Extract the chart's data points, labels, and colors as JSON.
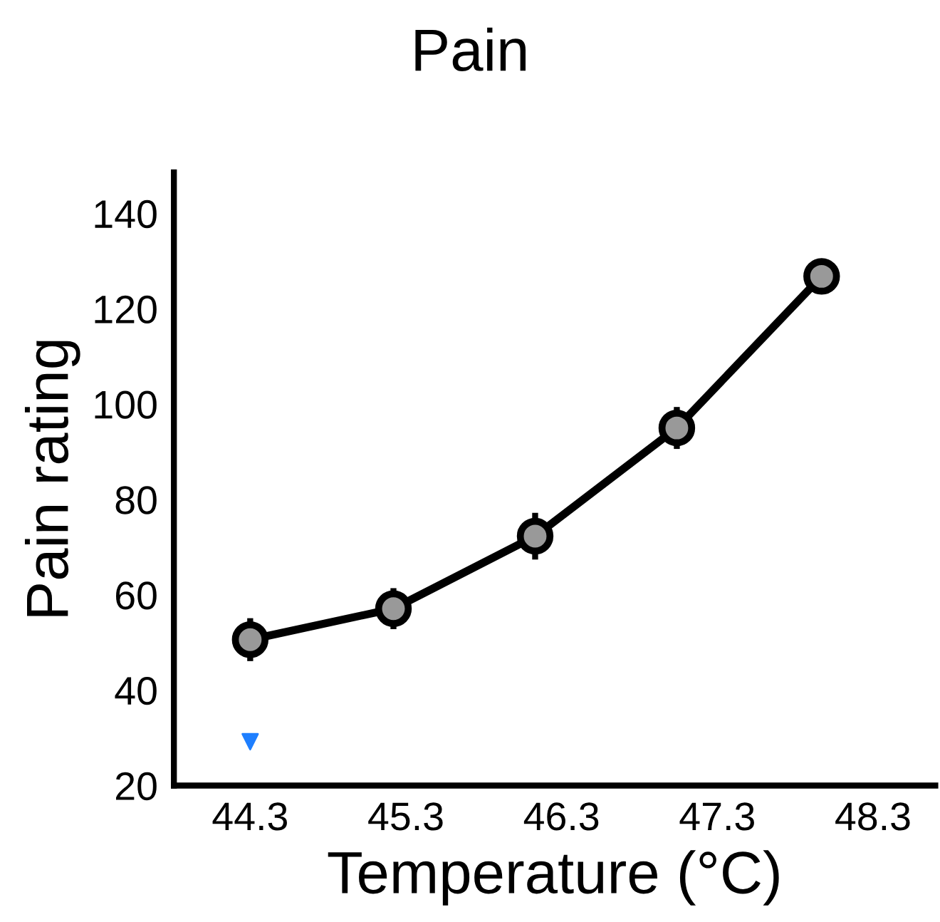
{
  "chart_data": {
    "type": "line",
    "title": "Pain",
    "xlabel": "Temperature (°C)",
    "ylabel": "Pain rating",
    "xlim": [
      43.81,
      48.7
    ],
    "xticks": [
      44.3,
      45.3,
      46.3,
      47.3,
      48.3
    ],
    "ylim": [
      20,
      148.6
    ],
    "yticks": [
      20,
      40,
      60,
      80,
      100,
      120,
      140
    ],
    "grid": false,
    "marker": "circle",
    "line_style": "solid",
    "series": [
      {
        "color": "#000000",
        "x": [
          44.3,
          45.22,
          46.13,
          47.04,
          47.97
        ],
        "values": [
          50.6,
          57.1,
          72.3,
          95.0,
          126.8
        ],
        "errors": [
          4.5,
          4.3,
          4.9,
          4.4,
          3.5
        ]
      },
      {
        "type": "scatter",
        "color": "#1e7fff",
        "marker": "triangle",
        "x": [
          44.3
        ],
        "values": [
          29.2
        ]
      }
    ]
  }
}
